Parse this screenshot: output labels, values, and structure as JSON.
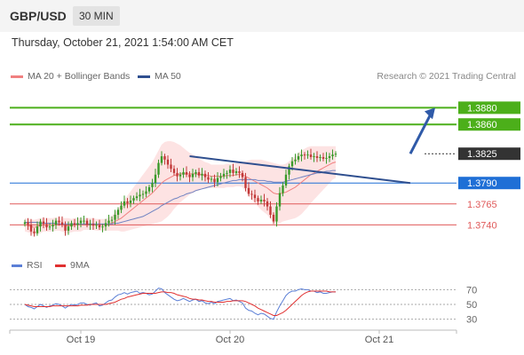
{
  "header": {
    "symbol": "GBP/USD",
    "timeframe": "30 MIN"
  },
  "datetime": "Thursday, October 21, 2021 1:54:00 AM CET",
  "legend": {
    "ma20_bb": {
      "label": "MA 20 + Bollinger Bands",
      "color": "#f08080"
    },
    "ma50": {
      "label": "MA 50",
      "color": "#2f4f8f"
    }
  },
  "credit": "Research © 2021 Trading Central",
  "rsi_legend": {
    "rsi": {
      "label": "RSI",
      "color": "#5b7fd6"
    },
    "ma9": {
      "label": "9MA",
      "color": "#e03030"
    }
  },
  "chart_data": [
    {
      "type": "candlestick",
      "ylim": [
        1.3717,
        1.3908
      ],
      "x_ticks": [
        {
          "label": "Oct 19",
          "index": 22
        },
        {
          "label": "Oct 20",
          "index": 70
        },
        {
          "label": "Oct 21",
          "index": 118
        }
      ],
      "price_levels": [
        {
          "label": "1.3880",
          "value": 1.388,
          "kind": "resistance",
          "color": "#4caf1a"
        },
        {
          "label": "1.3860",
          "value": 1.386,
          "kind": "resistance",
          "color": "#4caf1a"
        },
        {
          "label": "1.3825",
          "value": 1.3825,
          "kind": "current",
          "color": "#333333"
        },
        {
          "label": "1.3790",
          "value": 1.379,
          "kind": "pivot",
          "color": "#1f6fd6"
        },
        {
          "label": "1.3765",
          "value": 1.3765,
          "kind": "support",
          "color": "#e05a5a"
        },
        {
          "label": "1.3740",
          "value": 1.374,
          "kind": "support",
          "color": "#e05a5a"
        }
      ],
      "closes": [
        1.3743,
        1.374,
        1.3732,
        1.373,
        1.3738,
        1.3744,
        1.3741,
        1.3737,
        1.3738,
        1.374,
        1.3745,
        1.3743,
        1.374,
        1.3733,
        1.3738,
        1.3742,
        1.374,
        1.3742,
        1.3745,
        1.3745,
        1.374,
        1.3741,
        1.3739,
        1.374,
        1.3737,
        1.3738,
        1.3742,
        1.3745,
        1.3746,
        1.3752,
        1.3758,
        1.3763,
        1.3768,
        1.3766,
        1.3769,
        1.3772,
        1.3774,
        1.3776,
        1.3777,
        1.378,
        1.3785,
        1.379,
        1.38,
        1.3814,
        1.3822,
        1.3818,
        1.3812,
        1.3807,
        1.3802,
        1.3798,
        1.38,
        1.3803,
        1.38,
        1.3797,
        1.3801,
        1.3803,
        1.3799,
        1.3801,
        1.3797,
        1.3794,
        1.3795,
        1.3791,
        1.3796,
        1.3798,
        1.3801,
        1.3802,
        1.3806,
        1.3802,
        1.3804,
        1.3802,
        1.3797,
        1.3784,
        1.3777,
        1.3776,
        1.3772,
        1.3768,
        1.377,
        1.3768,
        1.3762,
        1.3752,
        1.3744,
        1.3762,
        1.3778,
        1.3787,
        1.38,
        1.381,
        1.3816,
        1.3818,
        1.3822,
        1.3824,
        1.3823,
        1.3824,
        1.3821,
        1.3822,
        1.382,
        1.3821,
        1.3819,
        1.382,
        1.3822,
        1.3824,
        1.3825
      ],
      "ma20": [
        1.374,
        1.3739,
        1.3738,
        1.3737,
        1.3738,
        1.3739,
        1.374,
        1.374,
        1.374,
        1.374,
        1.3741,
        1.3741,
        1.374,
        1.3739,
        1.3739,
        1.3739,
        1.374,
        1.374,
        1.374,
        1.3741,
        1.3741,
        1.3741,
        1.3741,
        1.374,
        1.374,
        1.374,
        1.374,
        1.3741,
        1.3742,
        1.3744,
        1.3746,
        1.3748,
        1.3751,
        1.3754,
        1.3757,
        1.376,
        1.3763,
        1.3766,
        1.3769,
        1.3772,
        1.3775,
        1.3778,
        1.3782,
        1.3786,
        1.379,
        1.3793,
        1.3795,
        1.3797,
        1.3799,
        1.38,
        1.3801,
        1.3801,
        1.3801,
        1.3801,
        1.3801,
        1.3801,
        1.38,
        1.38,
        1.3799,
        1.3799,
        1.3798,
        1.3798,
        1.3798,
        1.3798,
        1.3798,
        1.3799,
        1.3799,
        1.3799,
        1.38,
        1.38,
        1.38,
        1.3798,
        1.3796,
        1.3794,
        1.3792,
        1.379,
        1.3788,
        1.3786,
        1.3784,
        1.3781,
        1.3778,
        1.3777,
        1.3777,
        1.3778,
        1.3779,
        1.3781,
        1.3783,
        1.3785,
        1.3788,
        1.3791,
        1.3794,
        1.3797,
        1.38,
        1.3802,
        1.3804,
        1.3806,
        1.3808,
        1.381,
        1.3812,
        1.3814,
        1.3815
      ],
      "ma50": [
        1.3743,
        1.3743,
        1.3743,
        1.3743,
        1.3743,
        1.3742,
        1.3742,
        1.3742,
        1.3742,
        1.3742,
        1.3742,
        1.3741,
        1.3741,
        1.3741,
        1.3741,
        1.3741,
        1.3741,
        1.3741,
        1.3741,
        1.3741,
        1.3741,
        1.3741,
        1.3741,
        1.3741,
        1.3741,
        1.3741,
        1.3741,
        1.3741,
        1.3741,
        1.3742,
        1.3742,
        1.3743,
        1.3744,
        1.3745,
        1.3746,
        1.3747,
        1.3748,
        1.3749,
        1.375,
        1.3752,
        1.3754,
        1.3756,
        1.3758,
        1.376,
        1.3763,
        1.3765,
        1.3767,
        1.3769,
        1.3771,
        1.3772,
        1.3774,
        1.3775,
        1.3777,
        1.3778,
        1.3779,
        1.3781,
        1.3782,
        1.3783,
        1.3784,
        1.3785,
        1.3786,
        1.3787,
        1.3788,
        1.3789,
        1.379,
        1.3791,
        1.3792,
        1.3793,
        1.3793,
        1.3794,
        1.3794,
        1.3794,
        1.3794,
        1.3794,
        1.3794,
        1.3793,
        1.3793,
        1.3793,
        1.3792,
        1.3792,
        1.3791,
        1.3791,
        1.3791,
        1.3791,
        1.3792,
        1.3793,
        1.3794,
        1.3795,
        1.3796,
        1.3797,
        1.3798,
        1.3799,
        1.38,
        1.3801,
        1.3802,
        1.3802,
        1.3803,
        1.3804,
        1.3804,
        1.3805,
        1.3805
      ],
      "bollinger_width": [
        0.0008,
        0.0008,
        0.0008,
        0.0009,
        0.0009,
        0.0009,
        0.0008,
        0.0008,
        0.0008,
        0.0008,
        0.0008,
        0.0008,
        0.0008,
        0.0009,
        0.0009,
        0.0008,
        0.0008,
        0.0008,
        0.0008,
        0.0007,
        0.0007,
        0.0007,
        0.0007,
        0.0007,
        0.0007,
        0.0007,
        0.0007,
        0.0008,
        0.0009,
        0.0011,
        0.0013,
        0.0016,
        0.0019,
        0.0021,
        0.0023,
        0.0025,
        0.0027,
        0.0029,
        0.0031,
        0.0033,
        0.0035,
        0.0037,
        0.004,
        0.0043,
        0.0046,
        0.0046,
        0.0045,
        0.0043,
        0.004,
        0.0037,
        0.0034,
        0.0031,
        0.0028,
        0.0025,
        0.0023,
        0.0021,
        0.0019,
        0.0017,
        0.0016,
        0.0015,
        0.0014,
        0.0014,
        0.0014,
        0.0014,
        0.0014,
        0.0014,
        0.0014,
        0.0014,
        0.0014,
        0.0014,
        0.0015,
        0.0018,
        0.0021,
        0.0024,
        0.0026,
        0.0028,
        0.003,
        0.0031,
        0.0032,
        0.0034,
        0.0036,
        0.0036,
        0.0035,
        0.0034,
        0.0034,
        0.0035,
        0.0036,
        0.0037,
        0.0038,
        0.0038,
        0.0037,
        0.0036,
        0.0034,
        0.0032,
        0.003,
        0.0028,
        0.0026,
        0.0024,
        0.0022,
        0.002,
        0.0019
      ],
      "trendline": {
        "from": {
          "index": 57,
          "value": 1.3822
        },
        "to": {
          "index": 128,
          "value": 1.379
        }
      },
      "forecast_arrow": {
        "from": {
          "index": 128,
          "value": 1.3825
        },
        "to": {
          "index": 136,
          "value": 1.388
        }
      }
    },
    {
      "type": "line",
      "name": "RSI",
      "ylim": [
        20,
        80
      ],
      "y_ticks": [
        70,
        50,
        30
      ],
      "rsi": [
        50,
        47,
        46,
        44,
        47,
        50,
        48,
        46,
        48,
        49,
        51,
        50,
        48,
        45,
        48,
        50,
        49,
        50,
        52,
        52,
        50,
        49,
        51,
        52,
        48,
        49,
        52,
        55,
        56,
        60,
        63,
        64,
        66,
        64,
        66,
        67,
        68,
        65,
        66,
        65,
        63,
        64,
        68,
        72,
        71,
        66,
        63,
        60,
        57,
        55,
        56,
        58,
        56,
        54,
        56,
        57,
        54,
        55,
        52,
        51,
        53,
        51,
        54,
        55,
        56,
        57,
        58,
        55,
        56,
        54,
        52,
        45,
        42,
        41,
        38,
        36,
        38,
        37,
        34,
        31,
        30,
        40,
        48,
        55,
        62,
        66,
        68,
        68,
        70,
        71,
        70,
        70,
        68,
        68,
        66,
        67,
        65,
        65,
        66,
        67,
        67
      ],
      "ma9": [
        50,
        49,
        48,
        47,
        47,
        47,
        47,
        47,
        47,
        48,
        48,
        48,
        48,
        48,
        48,
        48,
        48,
        48,
        49,
        49,
        49,
        50,
        50,
        50,
        50,
        50,
        50,
        51,
        52,
        53,
        55,
        57,
        58,
        60,
        61,
        62,
        63,
        64,
        65,
        65,
        65,
        65,
        65,
        66,
        67,
        67,
        66,
        66,
        65,
        63,
        62,
        61,
        60,
        58,
        57,
        57,
        56,
        56,
        55,
        54,
        54,
        53,
        53,
        53,
        53,
        54,
        54,
        55,
        55,
        55,
        55,
        54,
        52,
        50,
        48,
        45,
        43,
        41,
        39,
        37,
        35,
        35,
        37,
        39,
        42,
        46,
        50,
        54,
        58,
        62,
        65,
        67,
        68,
        68,
        68,
        68,
        68,
        68,
        67,
        67,
        67
      ]
    }
  ]
}
